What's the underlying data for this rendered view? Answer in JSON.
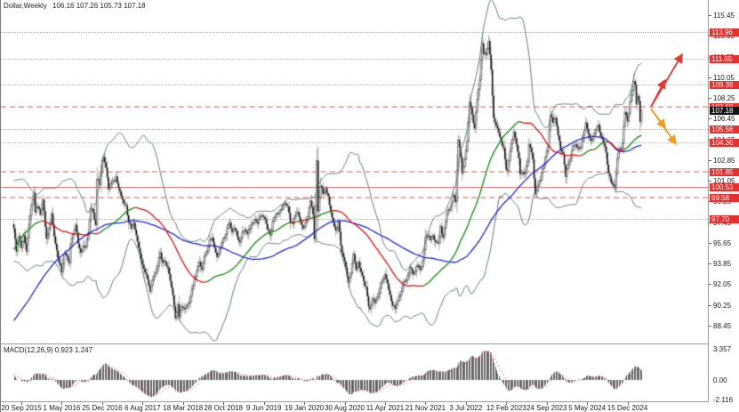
{
  "header": {
    "symbol": "Dollar,Weekly",
    "ohlc": "106.16 107.26 105.73 107.18"
  },
  "macd": {
    "label": "MACD(12,26,9) 0.923 1.247"
  },
  "price_axis": {
    "top_price": 115.45,
    "step": 1.8,
    "labels": [
      "115.45",
      "113.65",
      "111.85",
      "110.05",
      "108.25",
      "106.45",
      "104.65",
      "102.85",
      "101.05",
      "99.25",
      "97.45",
      "95.65",
      "93.85",
      "92.05",
      "90.25",
      "88.45"
    ]
  },
  "macd_axis": {
    "labels": [
      "3.357",
      "0.00",
      "-2.116"
    ],
    "values": [
      3.357,
      0.0,
      -2.116
    ]
  },
  "time_axis": {
    "labels": [
      "20 Sep 2015",
      "1 May 2016",
      "25 Dec 2016",
      "6 Aug 2017",
      "18 Mar 2018",
      "28 Oct 2018",
      "9 Jun 2019",
      "19 Jan 2020",
      "30 Aug 2020",
      "11 Apr 2021",
      "21 Nov 2021",
      "3 Jul 2022",
      "12 Feb 2023",
      "24 Sep 2023",
      "5 May 2024",
      "15 Dec 2024"
    ],
    "first_week": 6,
    "week_step": 32
  },
  "price_levels": [
    {
      "label": "113.96",
      "price": 113.96,
      "style": "dotted"
    },
    {
      "label": "111.65",
      "price": 111.65,
      "style": "dotted"
    },
    {
      "label": "109.39",
      "price": 109.39,
      "style": "dotted"
    },
    {
      "label": "107.50",
      "price": 107.5,
      "style": "dashed"
    },
    {
      "label": "105.56",
      "price": 105.56,
      "style": "dotted"
    },
    {
      "label": "104.36",
      "price": 104.36,
      "style": "dotted"
    },
    {
      "label": "101.85",
      "price": 101.85,
      "style": "dashed"
    },
    {
      "label": "100.53",
      "price": 100.53,
      "style": "solid"
    },
    {
      "label": "99.58",
      "price": 99.58,
      "style": "dashed"
    },
    {
      "label": "97.70",
      "price": 97.7,
      "style": "dotted"
    }
  ],
  "current_price": {
    "label": "107.18",
    "price": 107.18
  },
  "colors": {
    "badge_red": "#e53030",
    "badge_black": "#141414",
    "level_red": "#ef9898",
    "wick": "#8a8a8a",
    "candle": "#111111",
    "band": "#5c7d82",
    "ma_slow_blue": "#2222dd",
    "ma_fast_red": "#dd1010",
    "ma_fast_green": "#0b8a0b",
    "macd_bar": "#666666",
    "macd_signal": "#e05050",
    "arrow_red": "#e53935",
    "arrow_orange": "#f59a23"
  },
  "chart_data": {
    "type": "candlestick",
    "symbol": "Dollar",
    "timeframe": "Weekly",
    "last_bar": {
      "open": 106.16,
      "high": 107.26,
      "low": 105.73,
      "close": 107.18
    },
    "last_week": 497,
    "price_range_visible": [
      88.45,
      115.45
    ],
    "indicators": {
      "bollinger": {
        "period": 34,
        "deviation": 2.3
      },
      "ma_fast": {
        "period": 50,
        "color_rule": "green-rising-red-falling"
      },
      "ma_slow": {
        "period": 100,
        "color": "blue"
      },
      "macd": {
        "fast": 12,
        "slow": 26,
        "signal": 9,
        "last_main": 0.923,
        "last_signal": 1.247
      }
    },
    "close_anchors": [
      [
        -120,
        80.5
      ],
      [
        -100,
        80.0
      ],
      [
        -80,
        81.6
      ],
      [
        -60,
        84.5
      ],
      [
        -45,
        87.0
      ],
      [
        -34,
        94.8
      ],
      [
        -24,
        99.2
      ],
      [
        -18,
        100.3
      ],
      [
        -14,
        97.6
      ],
      [
        -10,
        94.9
      ],
      [
        -6,
        96.6
      ],
      [
        -2,
        97.8
      ],
      [
        0,
        96.9
      ],
      [
        2,
        94.9
      ],
      [
        4,
        96.2
      ],
      [
        6,
        95.2
      ],
      [
        8,
        96.3
      ],
      [
        10,
        94.9
      ],
      [
        12,
        97.2
      ],
      [
        14,
        98.9
      ],
      [
        16,
        100.0
      ],
      [
        17,
        98.3
      ],
      [
        19,
        98.8
      ],
      [
        21,
        98.1
      ],
      [
        23,
        99.4
      ],
      [
        26,
        96.0
      ],
      [
        28,
        96.9
      ],
      [
        30,
        98.2
      ],
      [
        32,
        96.2
      ],
      [
        34,
        95.0
      ],
      [
        36,
        93.9
      ],
      [
        38,
        93.1
      ],
      [
        40,
        94.7
      ],
      [
        42,
        94.5
      ],
      [
        44,
        93.9
      ],
      [
        45,
        95.5
      ],
      [
        47,
        96.4
      ],
      [
        49,
        97.2
      ],
      [
        51,
        95.6
      ],
      [
        53,
        94.8
      ],
      [
        55,
        95.4
      ],
      [
        57,
        95.3
      ],
      [
        59,
        96.5
      ],
      [
        61,
        98.6
      ],
      [
        63,
        98.3
      ],
      [
        65,
        97.2
      ],
      [
        66,
        101.2
      ],
      [
        68,
        100.7
      ],
      [
        70,
        102.8
      ],
      [
        71,
        103.1
      ],
      [
        73,
        102.2
      ],
      [
        75,
        100.3
      ],
      [
        77,
        100.8
      ],
      [
        79,
        101.0
      ],
      [
        81,
        101.4
      ],
      [
        83,
        100.4
      ],
      [
        85,
        99.7
      ],
      [
        87,
        99.1
      ],
      [
        89,
        98.9
      ],
      [
        91,
        97.4
      ],
      [
        93,
        96.9
      ],
      [
        95,
        97.4
      ],
      [
        97,
        96.3
      ],
      [
        99,
        95.2
      ],
      [
        101,
        94.2
      ],
      [
        103,
        93.4
      ],
      [
        105,
        92.9
      ],
      [
        107,
        91.9
      ],
      [
        108,
        91.4
      ],
      [
        110,
        92.4
      ],
      [
        112,
        93.0
      ],
      [
        114,
        93.6
      ],
      [
        116,
        94.8
      ],
      [
        118,
        93.9
      ],
      [
        120,
        94.0
      ],
      [
        122,
        93.5
      ],
      [
        124,
        92.3
      ],
      [
        126,
        91.1
      ],
      [
        128,
        89.1
      ],
      [
        130,
        90.3
      ],
      [
        131,
        89.2
      ],
      [
        133,
        90.1
      ],
      [
        136,
        90.0
      ],
      [
        139,
        90.5
      ],
      [
        141,
        91.6
      ],
      [
        143,
        92.5
      ],
      [
        145,
        93.2
      ],
      [
        147,
        94.0
      ],
      [
        149,
        93.3
      ],
      [
        151,
        94.5
      ],
      [
        153,
        94.9
      ],
      [
        155,
        95.9
      ],
      [
        157,
        96.1
      ],
      [
        159,
        95.2
      ],
      [
        161,
        94.4
      ],
      [
        163,
        95.1
      ],
      [
        165,
        95.7
      ],
      [
        167,
        96.1
      ],
      [
        169,
        96.9
      ],
      [
        171,
        97.4
      ],
      [
        173,
        96.6
      ],
      [
        175,
        96.9
      ],
      [
        177,
        96.2
      ],
      [
        179,
        95.7
      ],
      [
        181,
        96.6
      ],
      [
        183,
        96.8
      ],
      [
        185,
        96.4
      ],
      [
        187,
        96.9
      ],
      [
        189,
        97.4
      ],
      [
        191,
        97.7
      ],
      [
        193,
        97.3
      ],
      [
        195,
        97.9
      ],
      [
        197,
        98.0
      ],
      [
        199,
        97.7
      ],
      [
        201,
        96.8
      ],
      [
        203,
        96.3
      ],
      [
        205,
        97.5
      ],
      [
        207,
        97.9
      ],
      [
        209,
        98.2
      ],
      [
        211,
        98.5
      ],
      [
        213,
        98.9
      ],
      [
        215,
        99.1
      ],
      [
        217,
        98.8
      ],
      [
        219,
        97.4
      ],
      [
        221,
        97.3
      ],
      [
        223,
        98.0
      ],
      [
        225,
        98.3
      ],
      [
        227,
        97.5
      ],
      [
        229,
        96.9
      ],
      [
        231,
        97.4
      ],
      [
        233,
        97.9
      ],
      [
        235,
        99.3
      ],
      [
        237,
        98.1
      ],
      [
        238,
        96.0
      ],
      [
        239,
        98.8
      ],
      [
        240,
        102.8
      ],
      [
        241,
        98.4
      ],
      [
        243,
        100.6
      ],
      [
        245,
        99.9
      ],
      [
        247,
        100.4
      ],
      [
        249,
        99.7
      ],
      [
        251,
        98.3
      ],
      [
        253,
        97.4
      ],
      [
        255,
        96.7
      ],
      [
        257,
        97.5
      ],
      [
        259,
        95.4
      ],
      [
        261,
        94.4
      ],
      [
        263,
        93.5
      ],
      [
        265,
        92.2
      ],
      [
        267,
        93.0
      ],
      [
        269,
        94.7
      ],
      [
        271,
        93.3
      ],
      [
        273,
        94.0
      ],
      [
        275,
        93.1
      ],
      [
        277,
        92.3
      ],
      [
        279,
        91.8
      ],
      [
        281,
        90.1
      ],
      [
        282,
        89.9
      ],
      [
        284,
        90.8
      ],
      [
        286,
        90.4
      ],
      [
        288,
        90.9
      ],
      [
        290,
        91.7
      ],
      [
        292,
        92.4
      ],
      [
        294,
        92.9
      ],
      [
        296,
        92.1
      ],
      [
        298,
        91.1
      ],
      [
        300,
        90.2
      ],
      [
        302,
        89.9
      ],
      [
        304,
        90.6
      ],
      [
        306,
        91.1
      ],
      [
        308,
        92.0
      ],
      [
        310,
        92.3
      ],
      [
        312,
        92.8
      ],
      [
        314,
        93.5
      ],
      [
        316,
        92.9
      ],
      [
        318,
        93.2
      ],
      [
        320,
        93.7
      ],
      [
        322,
        93.3
      ],
      [
        324,
        94.1
      ],
      [
        326,
        96.1
      ],
      [
        328,
        96.2
      ],
      [
        330,
        95.9
      ],
      [
        332,
        96.3
      ],
      [
        334,
        95.7
      ],
      [
        336,
        95.6
      ],
      [
        338,
        97.1
      ],
      [
        340,
        96.1
      ],
      [
        342,
        97.5
      ],
      [
        344,
        98.5
      ],
      [
        346,
        98.8
      ],
      [
        348,
        99.8
      ],
      [
        350,
        99.2
      ],
      [
        352,
        104.6
      ],
      [
        354,
        103.1
      ],
      [
        355,
        101.7
      ],
      [
        357,
        102.9
      ],
      [
        359,
        104.5
      ],
      [
        361,
        107.9
      ],
      [
        363,
        106.8
      ],
      [
        365,
        105.6
      ],
      [
        367,
        108.1
      ],
      [
        369,
        109.8
      ],
      [
        371,
        113.0
      ],
      [
        372,
        112.1
      ],
      [
        374,
        112.0
      ],
      [
        376,
        113.2
      ],
      [
        378,
        110.7
      ],
      [
        380,
        106.5
      ],
      [
        383,
        105.6
      ],
      [
        386,
        104.5
      ],
      [
        388,
        103.9
      ],
      [
        390,
        102.0
      ],
      [
        391,
        101.9
      ],
      [
        393,
        103.6
      ],
      [
        395,
        104.6
      ],
      [
        396,
        105.3
      ],
      [
        398,
        104.2
      ],
      [
        400,
        103.0
      ],
      [
        401,
        101.6
      ],
      [
        403,
        101.8
      ],
      [
        405,
        101.7
      ],
      [
        407,
        102.7
      ],
      [
        408,
        104.2
      ],
      [
        410,
        103.5
      ],
      [
        411,
        102.9
      ],
      [
        413,
        99.9
      ],
      [
        415,
        100.6
      ],
      [
        417,
        101.1
      ],
      [
        419,
        102.1
      ],
      [
        421,
        103.1
      ],
      [
        423,
        104.0
      ],
      [
        425,
        106.8
      ],
      [
        427,
        106.1
      ],
      [
        429,
        106.5
      ],
      [
        431,
        105.0
      ],
      [
        433,
        103.8
      ],
      [
        435,
        103.4
      ],
      [
        437,
        101.4
      ],
      [
        439,
        102.5
      ],
      [
        441,
        103.0
      ],
      [
        443,
        104.1
      ],
      [
        445,
        104.2
      ],
      [
        447,
        103.8
      ],
      [
        449,
        103.9
      ],
      [
        451,
        105.0
      ],
      [
        453,
        106.1
      ],
      [
        455,
        105.1
      ],
      [
        457,
        104.5
      ],
      [
        459,
        104.9
      ],
      [
        461,
        105.5
      ],
      [
        463,
        105.9
      ],
      [
        465,
        104.9
      ],
      [
        467,
        104.3
      ],
      [
        469,
        103.5
      ],
      [
        471,
        101.7
      ],
      [
        473,
        100.9
      ],
      [
        475,
        100.7
      ],
      [
        476,
        100.4
      ],
      [
        478,
        103.0
      ],
      [
        480,
        103.8
      ],
      [
        482,
        104.3
      ],
      [
        484,
        107.0
      ],
      [
        486,
        106.2
      ],
      [
        488,
        107.9
      ],
      [
        490,
        108.9
      ],
      [
        491,
        109.7
      ],
      [
        492,
        109.4
      ],
      [
        493,
        107.7
      ],
      [
        494,
        108.4
      ],
      [
        495,
        108.0
      ],
      [
        496,
        106.2
      ],
      [
        497,
        107.18
      ]
    ],
    "arrows": [
      {
        "name": "projection-up-short",
        "color": "#e53935",
        "from": {
          "week": 504.6,
          "price": 107.48
        },
        "to": {
          "week": 515.0,
          "price": 109.66
        }
      },
      {
        "name": "projection-up-long",
        "color": "#e53935",
        "from": {
          "week": 504.6,
          "price": 107.48
        },
        "to": {
          "week": 528.5,
          "price": 111.9
        }
      },
      {
        "name": "projection-down-short",
        "color": "#f59a23",
        "from": {
          "week": 504.6,
          "price": 107.3
        },
        "to": {
          "week": 515.0,
          "price": 105.78
        }
      },
      {
        "name": "projection-down-long",
        "color": "#f59a23",
        "from": {
          "week": 504.6,
          "price": 107.3
        },
        "to": {
          "week": 523.4,
          "price": 104.38
        }
      }
    ]
  }
}
